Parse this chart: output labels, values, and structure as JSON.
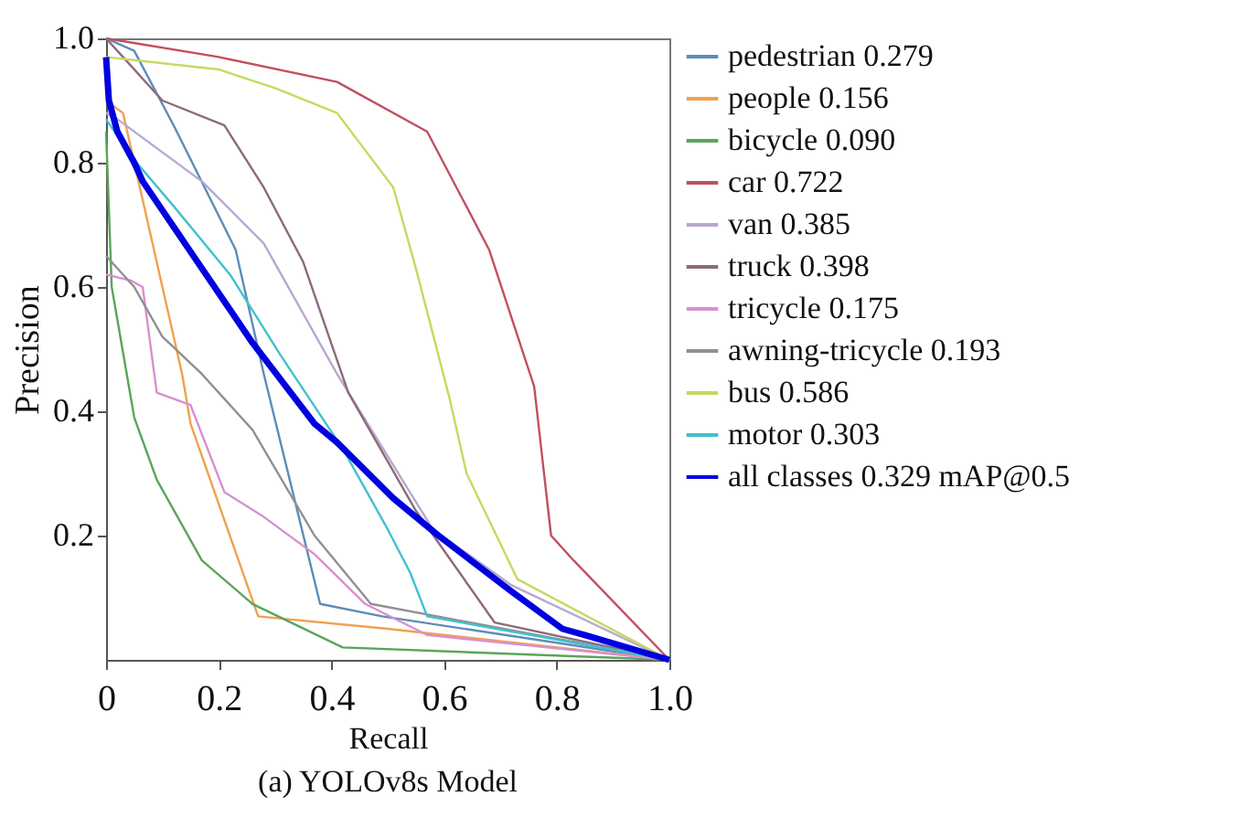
{
  "chart_data": {
    "type": "line",
    "xlabel": "Recall",
    "ylabel": "Precision",
    "annotations": [
      "(a) YOLOv8s Model"
    ],
    "xlim": [
      0,
      1
    ],
    "ylim": [
      0,
      1
    ],
    "xticks": [
      0,
      0.2,
      0.4,
      0.6,
      0.8,
      {
        "value": 1,
        "label": "1.0"
      }
    ],
    "yticks": [
      0.2,
      0.4,
      0.6,
      0.8,
      {
        "value": 1,
        "label": "1.0"
      }
    ],
    "grid": false,
    "legend": "right",
    "marker": "none",
    "line_style": "solid",
    "series": [
      {
        "name": "pedestrian 0.279",
        "color": "#5b8db8",
        "x": [
          0,
          0.05,
          0.12,
          0.23,
          0.28,
          0.38,
          0.49,
          1
        ],
        "values": [
          1.0,
          0.98,
          0.86,
          0.66,
          0.46,
          0.09,
          0.07,
          0
        ]
      },
      {
        "name": "people 0.156",
        "color": "#f0a050",
        "x": [
          0,
          0.03,
          0.135,
          0.15,
          0.27,
          0.5,
          1
        ],
        "values": [
          0.9,
          0.88,
          0.46,
          0.38,
          0.07,
          0.05,
          0
        ]
      },
      {
        "name": "bicycle 0.090",
        "color": "#5aa55a",
        "x": [
          0,
          0.01,
          0.05,
          0.09,
          0.17,
          0.26,
          0.42,
          1
        ],
        "values": [
          0.85,
          0.6,
          0.39,
          0.29,
          0.16,
          0.09,
          0.02,
          0
        ]
      },
      {
        "name": "car 0.722",
        "color": "#c0505f",
        "x": [
          0,
          0.2,
          0.41,
          0.57,
          0.68,
          0.76,
          0.79,
          0.83,
          1
        ],
        "values": [
          1.0,
          0.97,
          0.93,
          0.85,
          0.66,
          0.44,
          0.2,
          0.16,
          0
        ]
      },
      {
        "name": "van 0.385",
        "color": "#b8a8d0",
        "x": [
          0,
          0.02,
          0.17,
          0.28,
          0.41,
          0.58,
          0.72,
          1
        ],
        "values": [
          0.88,
          0.87,
          0.77,
          0.67,
          0.46,
          0.21,
          0.12,
          0
        ]
      },
      {
        "name": "truck 0.398",
        "color": "#8b6b7b",
        "x": [
          0,
          0.03,
          0.1,
          0.21,
          0.28,
          0.35,
          0.43,
          0.55,
          0.69,
          1
        ],
        "values": [
          1.0,
          0.97,
          0.9,
          0.86,
          0.76,
          0.64,
          0.43,
          0.24,
          0.06,
          0
        ]
      },
      {
        "name": "tricycle 0.175",
        "color": "#d890d0",
        "x": [
          0,
          0.045,
          0.065,
          0.09,
          0.15,
          0.21,
          0.28,
          0.37,
          0.46,
          0.57,
          1
        ],
        "values": [
          0.62,
          0.61,
          0.6,
          0.43,
          0.41,
          0.27,
          0.23,
          0.17,
          0.09,
          0.04,
          0
        ]
      },
      {
        "name": "awning-tricycle 0.193",
        "color": "#909090",
        "x": [
          0,
          0.05,
          0.1,
          0.17,
          0.26,
          0.37,
          0.47,
          1
        ],
        "values": [
          0.65,
          0.6,
          0.52,
          0.46,
          0.37,
          0.2,
          0.09,
          0
        ]
      },
      {
        "name": "bus 0.586",
        "color": "#c8d860",
        "x": [
          0,
          0.2,
          0.3,
          0.41,
          0.51,
          0.55,
          0.61,
          0.64,
          0.73,
          1
        ],
        "values": [
          0.97,
          0.95,
          0.92,
          0.88,
          0.76,
          0.63,
          0.42,
          0.3,
          0.13,
          0
        ]
      },
      {
        "name": "motor 0.303",
        "color": "#40c0d0",
        "x": [
          0,
          0.045,
          0.12,
          0.22,
          0.31,
          0.42,
          0.5,
          0.54,
          0.57,
          1
        ],
        "values": [
          0.87,
          0.81,
          0.73,
          0.62,
          0.49,
          0.34,
          0.21,
          0.14,
          0.07,
          0
        ]
      },
      {
        "name": "all classes 0.329 mAP@0.5",
        "color": "#0000e0",
        "x": [
          0,
          0.005,
          0.02,
          0.05,
          0.065,
          0.14,
          0.26,
          0.37,
          0.41,
          0.51,
          0.59,
          0.72,
          0.81,
          0.85,
          1
        ],
        "values": [
          0.97,
          0.9,
          0.85,
          0.8,
          0.77,
          0.67,
          0.51,
          0.38,
          0.35,
          0.26,
          0.2,
          0.11,
          0.05,
          0.04,
          0
        ]
      }
    ]
  }
}
